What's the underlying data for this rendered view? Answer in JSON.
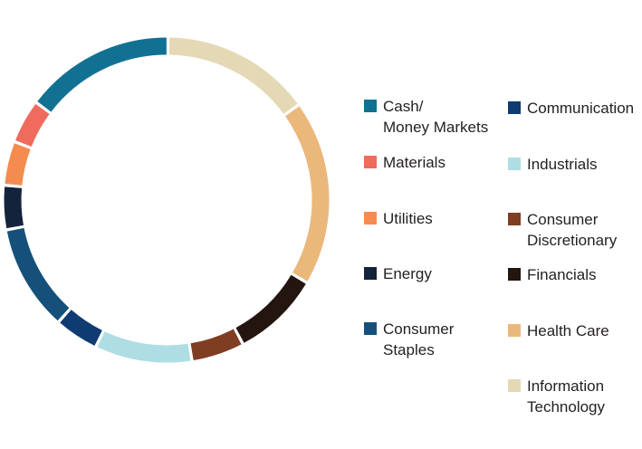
{
  "chart_data": {
    "type": "pie",
    "donut": true,
    "title": "",
    "legend_position": "right",
    "slices": [
      {
        "name": "Information Technology",
        "value": 17,
        "color": "#e4d9b4"
      },
      {
        "name": "Health Care",
        "value": 21,
        "color": "#ebb87b"
      },
      {
        "name": "Financials",
        "value": 10,
        "color": "#231510"
      },
      {
        "name": "Consumer Discretionary",
        "value": 6,
        "color": "#7f3d22"
      },
      {
        "name": "Industrials",
        "value": 11,
        "color": "#aedde4"
      },
      {
        "name": "Communication",
        "value": 5,
        "color": "#0f3b73"
      },
      {
        "name": "Consumer Staples",
        "value": 12,
        "color": "#15507a"
      },
      {
        "name": "Energy",
        "value": 5,
        "color": "#14233c"
      },
      {
        "name": "Utilities",
        "value": 5,
        "color": "#f48c50"
      },
      {
        "name": "Materials",
        "value": 5,
        "color": "#ef6b5d"
      },
      {
        "name": "Cash/\nMoney Markets",
        "value": 17,
        "color": "#127193"
      }
    ],
    "legend": [
      {
        "label": "Cash/\nMoney Markets",
        "color": "#127193"
      },
      {
        "label": "Materials",
        "color": "#ef6b5d"
      },
      {
        "label": "Utilities",
        "color": "#f48c50"
      },
      {
        "label": "Energy",
        "color": "#14233c"
      },
      {
        "label": "Consumer\nStaples",
        "color": "#15507a"
      },
      {
        "label": "Communication",
        "color": "#0f3b73"
      },
      {
        "label": "Industrials",
        "color": "#aedde4"
      },
      {
        "label": "Consumer\nDiscretionary",
        "color": "#7f3d22"
      },
      {
        "label": "Financials",
        "color": "#231510"
      },
      {
        "label": "Health Care",
        "color": "#ebb87b"
      },
      {
        "label": "Information\nTechnology",
        "color": "#e4d9b4"
      }
    ]
  }
}
